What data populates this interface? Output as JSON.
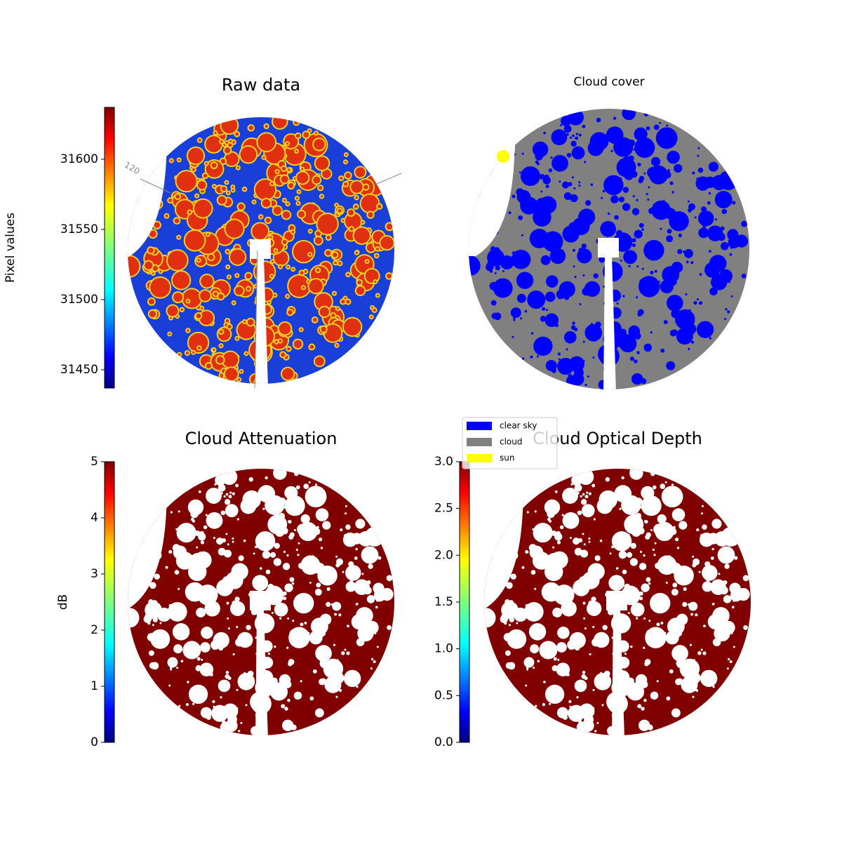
{
  "chart_data": [
    {
      "type": "image",
      "title": "Raw data",
      "colorbar_label": "Pixel values",
      "colormap": "jet",
      "ylim": [
        31437,
        31637
      ],
      "yticks": [
        31450,
        31500,
        31550,
        31600
      ],
      "annotations": [
        "120"
      ]
    },
    {
      "type": "category-image",
      "title": "Cloud cover",
      "legend": [
        {
          "name": "clear sky",
          "color": "#0000ff"
        },
        {
          "name": "cloud",
          "color": "#808080"
        },
        {
          "name": "sun",
          "color": "#ffff00"
        }
      ]
    },
    {
      "type": "image",
      "title": "Cloud Attenuation",
      "colorbar_label": "dB",
      "colormap": "jet",
      "ylim": [
        0,
        5
      ],
      "yticks": [
        0,
        1,
        2,
        3,
        4,
        5
      ]
    },
    {
      "type": "image",
      "title": "Cloud Optical Depth",
      "colormap": "jet",
      "ylim": [
        0,
        3
      ],
      "yticks": [
        {
          "value": 0,
          "label": "0.0"
        },
        {
          "value": 0.5,
          "label": "0.5"
        },
        {
          "value": 1,
          "label": "1.0"
        },
        {
          "value": 1.5,
          "label": "1.5"
        },
        {
          "value": 2,
          "label": "2.0"
        },
        {
          "value": 2.5,
          "label": "2.5"
        },
        {
          "value": 3,
          "label": "3.0"
        }
      ]
    }
  ]
}
